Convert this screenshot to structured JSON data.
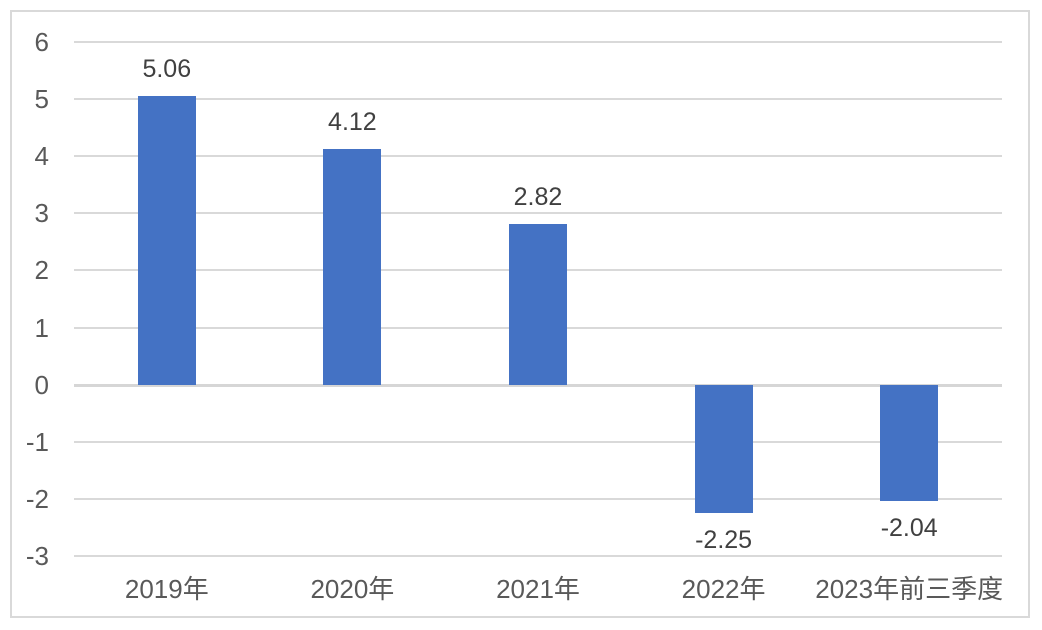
{
  "chart_data": {
    "type": "bar",
    "title": "",
    "xlabel": "",
    "ylabel": "",
    "categories": [
      "2019年",
      "2020年",
      "2021年",
      "2022年",
      "2023年前三季度"
    ],
    "values": [
      5.06,
      4.12,
      2.82,
      -2.25,
      -2.04
    ],
    "data_labels": [
      "5.06",
      "4.12",
      "2.82",
      "-2.25",
      "-2.04"
    ],
    "ylim": [
      -3,
      6
    ],
    "yticks": [
      6,
      5,
      4,
      3,
      2,
      1,
      0,
      -1,
      -2,
      -3
    ],
    "grid": true,
    "legend": false,
    "colors": {
      "bar_fill": "#4472C4",
      "gridline": "#D9D9D9",
      "zero_line": "#D6D6D6",
      "frame_border": "#D9D9D9",
      "axis_text": "#595959",
      "data_label_text": "#404040",
      "background": "#FFFFFF"
    }
  }
}
